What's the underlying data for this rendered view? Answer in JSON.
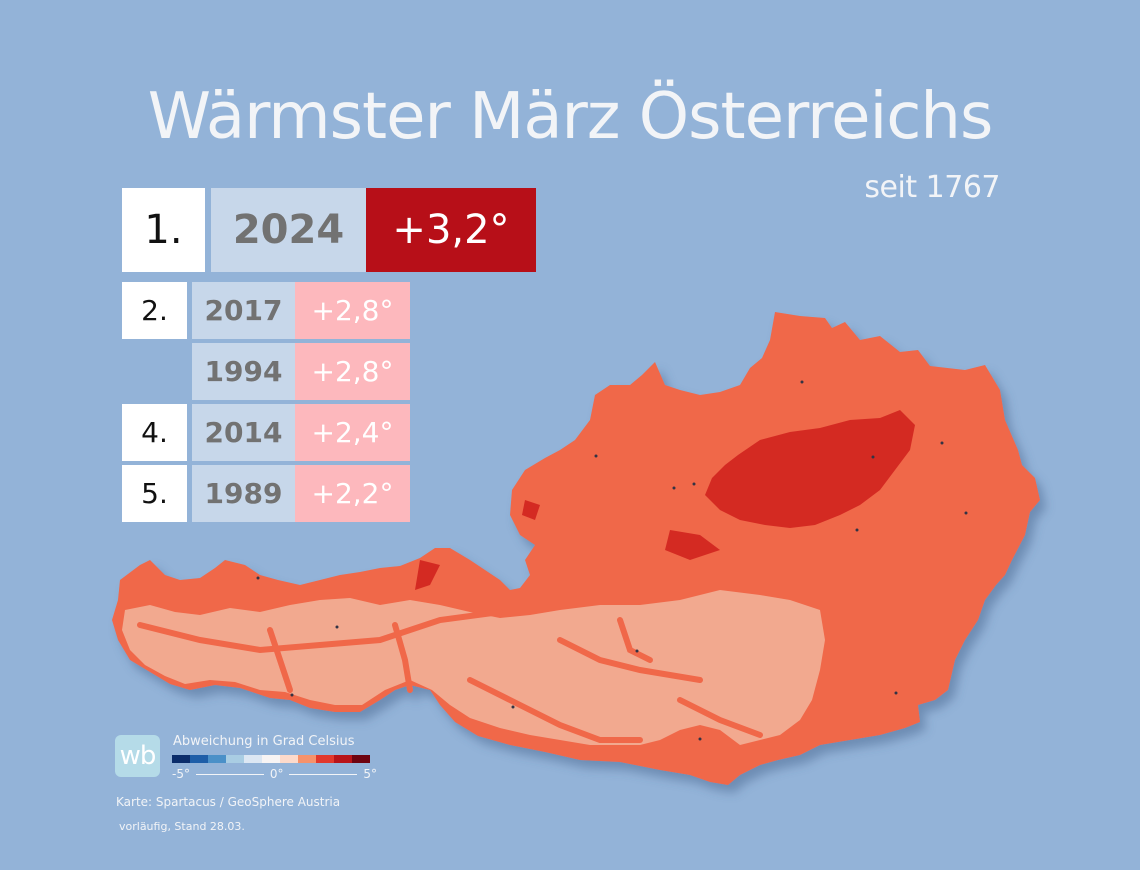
{
  "header": {
    "title": "Wärmster März Österreichs",
    "subtitle": "seit 1767"
  },
  "ranking": [
    {
      "rank": "1.",
      "year": "2024",
      "anomaly": "+3,2°"
    },
    {
      "rank": "2.",
      "year": "2017",
      "anomaly": "+2,8°"
    },
    {
      "rank": "",
      "year": "1994",
      "anomaly": "+2,8°"
    },
    {
      "rank": "4.",
      "year": "2014",
      "anomaly": "+2,4°"
    },
    {
      "rank": "5.",
      "year": "1989",
      "anomaly": "+2,2°"
    }
  ],
  "colors": {
    "background": "#93b3d8",
    "top_anomaly": "#b70f18",
    "other_anomaly": "#fdb8bd",
    "year_cell": "#c7d7ea",
    "map_main": "#f0674a",
    "map_light": "#f2a98f",
    "map_dark": "#d42a22"
  },
  "map": {
    "region": "Austria",
    "metric": "March 2024 temperature anomaly"
  },
  "legend": {
    "logo": "wb",
    "title": "Abweichung in Grad Celsius",
    "min_label": "-5°",
    "mid_label": "0°",
    "max_label": "5°",
    "scale_colors": [
      "#0b2d6b",
      "#1e5ea8",
      "#4a90c8",
      "#a9cde3",
      "#dce7f3",
      "#f7f4f4",
      "#fddacb",
      "#f6926b",
      "#e2382c",
      "#b81419",
      "#6e0310"
    ]
  },
  "footer": {
    "source": "Karte: Spartacus / GeoSphere Austria",
    "status": "vorläufig, Stand 28.03."
  }
}
